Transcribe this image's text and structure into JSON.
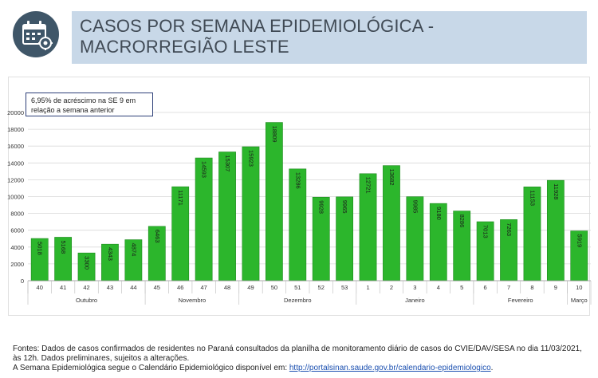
{
  "header": {
    "title_line1": "CASOS POR SEMANA EPIDEMIOLÓGICA -",
    "title_line2": "MACRORREGIÃO LESTE",
    "icon": "calendar-icon",
    "icon_color": "#3f5668",
    "band_color": "#c8d8e8"
  },
  "annotation": {
    "line1": "6,95% de acréscimo na SE 9 em",
    "line2": "relação a semana anterior"
  },
  "chart_data": {
    "type": "bar",
    "categories": [
      "40",
      "41",
      "42",
      "43",
      "44",
      "45",
      "46",
      "47",
      "48",
      "49",
      "50",
      "51",
      "52",
      "53",
      "1",
      "2",
      "3",
      "4",
      "5",
      "6",
      "7",
      "8",
      "9",
      "10"
    ],
    "values": [
      5018,
      5168,
      3300,
      4343,
      4874,
      6463,
      11171,
      14593,
      15307,
      15923,
      18809,
      13286,
      9928,
      9965,
      12721,
      13682,
      9985,
      9180,
      8286,
      7013,
      7263,
      11153,
      11928,
      5919
    ],
    "value_labels": [
      "5018",
      "5168",
      "3300",
      "4343",
      "4874",
      "6463",
      "11171",
      "14593",
      "15307",
      "15923",
      "18809",
      "13286",
      "9928",
      "9965",
      "12721",
      "13682",
      "9985",
      "9180",
      "8286",
      "7013",
      "7263",
      "11153",
      "11928",
      "5919"
    ],
    "month_groups": [
      {
        "label": "Outubro",
        "start": 0,
        "end": 4
      },
      {
        "label": "Novembro",
        "start": 5,
        "end": 8
      },
      {
        "label": "Dezembro",
        "start": 9,
        "end": 13
      },
      {
        "label": "Janeiro",
        "start": 14,
        "end": 18
      },
      {
        "label": "Fevereiro",
        "start": 19,
        "end": 22
      },
      {
        "label": "Março",
        "start": 23,
        "end": 23
      }
    ],
    "yticks": [
      "0",
      "2000",
      "4000",
      "6000",
      "8000",
      "10000",
      "12000",
      "14000",
      "16000",
      "18000",
      "20000"
    ],
    "ylim": [
      0,
      20000
    ],
    "bar_color": "#2cb62c",
    "bar_edge_color": "#1e8a1e",
    "grid": true
  },
  "footer": {
    "line1": "Fontes: Dados de casos confirmados de residentes no Paraná consultados da planilha de monitoramento diário de casos do CVIE/DAV/SESA no dia 11/03/2021, às 12h. Dados preliminares, sujeitos a alterações.",
    "line2_prefix": "A Semana Epidemiológica segue o Calendário Epidemiológico disponível em: ",
    "link_text": "http://portalsinan.saude.gov.br/calendario-epidemiologico",
    "line2_suffix": "."
  }
}
